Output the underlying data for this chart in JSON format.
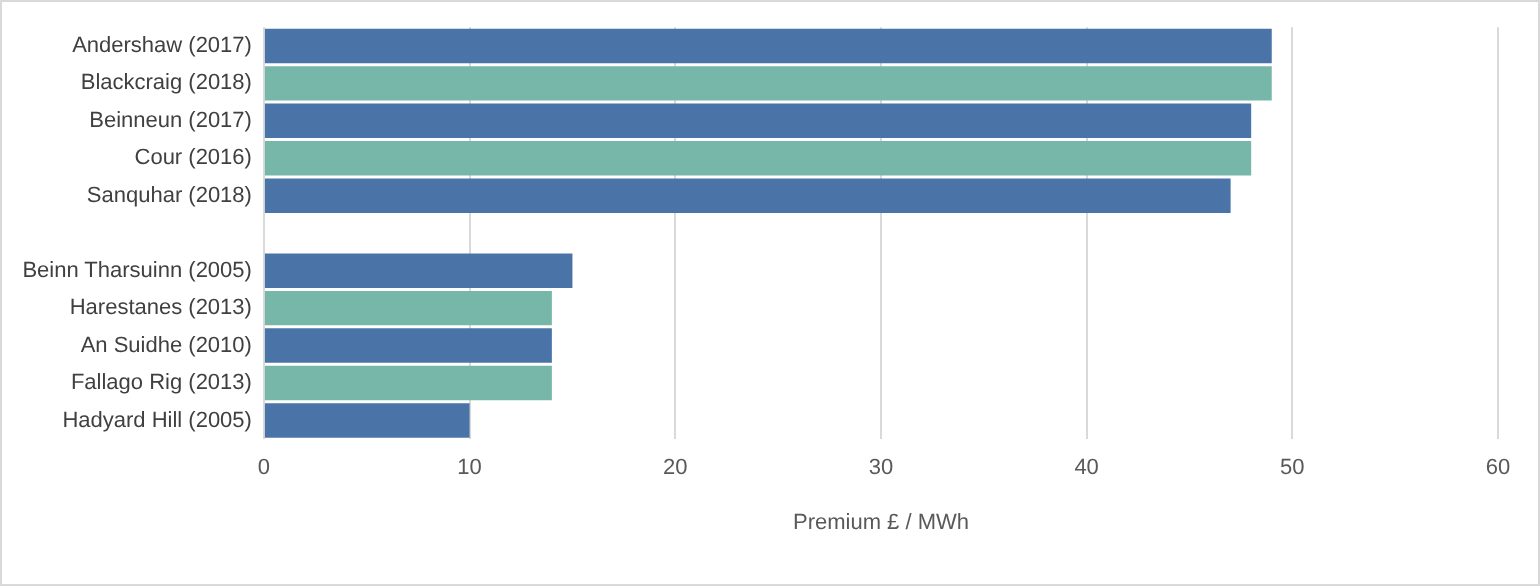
{
  "chart_data": {
    "type": "bar",
    "orientation": "horizontal",
    "xlabel": "Premium £ / MWh",
    "categories": [
      "Andershaw (2017)",
      "Blackcraig (2018)",
      "Beinneun (2017)",
      "Cour (2016)",
      "Sanquhar (2018)",
      null,
      "Beinn Tharsuinn (2005)",
      "Harestanes (2013)",
      "An Suidhe (2010)",
      "Fallago Rig (2013)",
      "Hadyard Hill (2005)"
    ],
    "values": [
      49,
      49,
      48,
      48,
      47,
      null,
      15,
      14,
      14,
      14,
      10
    ],
    "colors": [
      "#4a74a8",
      "#76b7aa",
      "#4a74a8",
      "#76b7aa",
      "#4a74a8",
      null,
      "#4a74a8",
      "#76b7aa",
      "#4a74a8",
      "#76b7aa",
      "#4a74a8"
    ],
    "xlim": [
      0,
      60
    ],
    "xticks": [
      0,
      10,
      20,
      30,
      40,
      50,
      60
    ],
    "grid": "x",
    "legend": false
  }
}
